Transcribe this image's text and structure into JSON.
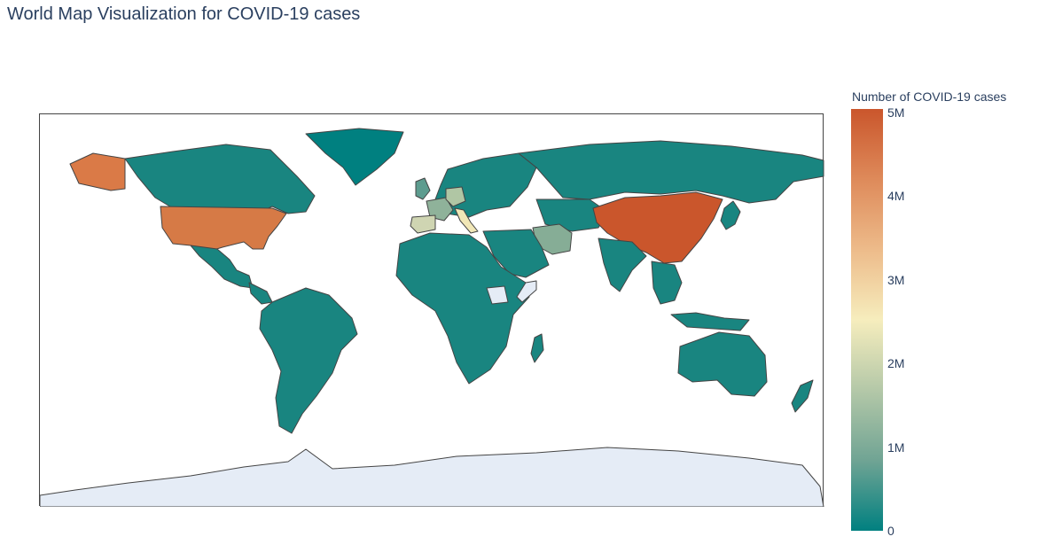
{
  "title": "World Map Visualization for COVID-19 cases",
  "colorbar": {
    "title": "Number of COVID-19 cases",
    "ticks": [
      {
        "label": "5M",
        "value": 5000000
      },
      {
        "label": "4M",
        "value": 4000000
      },
      {
        "label": "3M",
        "value": 3000000
      },
      {
        "label": "2M",
        "value": 2000000
      },
      {
        "label": "1M",
        "value": 1000000
      },
      {
        "label": "0",
        "value": 0
      }
    ],
    "range": [
      0,
      5000000
    ],
    "colorscale": [
      "#008080",
      "#70a494",
      "#b4c8a8",
      "#f6edbd",
      "#edbb8a",
      "#de8a5a",
      "#ca562c"
    ]
  },
  "colors": {
    "no_data": "#e5ecf6",
    "border": "#444444",
    "low": "#198580"
  },
  "map_data": {
    "projection": "equirectangular",
    "locations": [
      {
        "name": "United States",
        "value": 4300000
      },
      {
        "name": "Alaska",
        "value": 4300000
      },
      {
        "name": "China",
        "value": 4800000
      },
      {
        "name": "Iran",
        "value": 1200000
      },
      {
        "name": "Italy",
        "value": 2600000
      },
      {
        "name": "Spain",
        "value": 2100000
      },
      {
        "name": "France",
        "value": 1500000
      },
      {
        "name": "Germany",
        "value": 1800000
      },
      {
        "name": "United Kingdom",
        "value": 900000
      },
      {
        "name": "Canada",
        "value": 300000
      },
      {
        "name": "Somalia",
        "value": null
      },
      {
        "name": "South Sudan",
        "value": null
      },
      {
        "name": "Antarctica",
        "value": null
      }
    ]
  }
}
